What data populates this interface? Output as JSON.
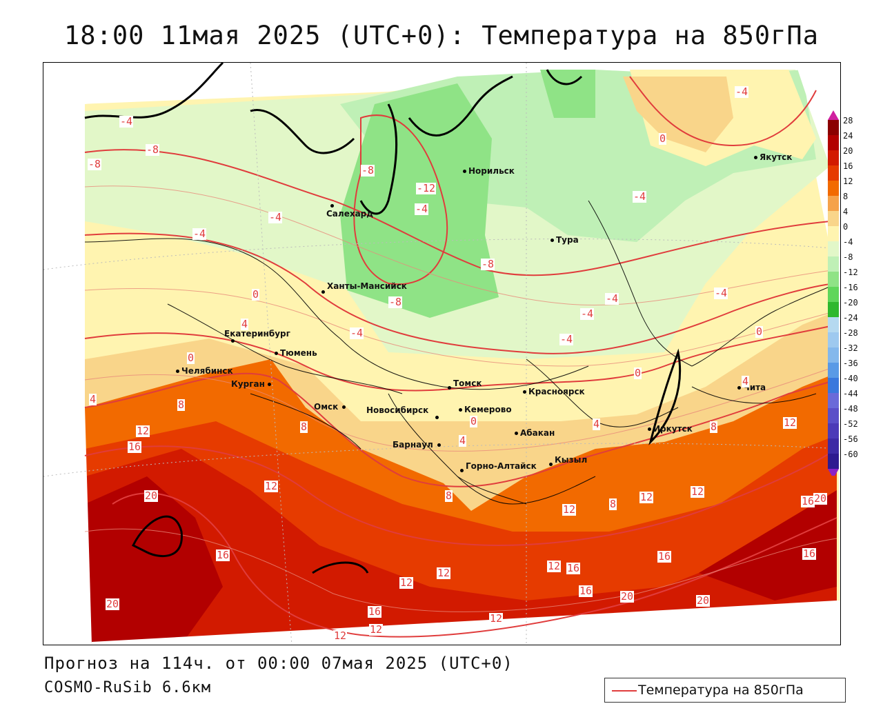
{
  "title": "18:00 11мая 2025 (UTC+0): Температура на 850гПа",
  "footer": {
    "forecast": "Прогноз на 114ч. от 00:00 07мая 2025 (UTC+0)",
    "model": "COSMO-RuSib 6.6км"
  },
  "legend": {
    "label": "Температура на 850гПа",
    "color": "#e03c3c"
  },
  "scale": {
    "ticks": [
      "28",
      "24",
      "20",
      "16",
      "12",
      "8",
      "4",
      "0",
      "-4",
      "-8",
      "-12",
      "-16",
      "-20",
      "-24",
      "-28",
      "-32",
      "-36",
      "-40",
      "-44",
      "-48",
      "-52",
      "-56",
      "-60"
    ],
    "colors": [
      "#8b0000",
      "#b20000",
      "#d21a00",
      "#e63b00",
      "#f26a00",
      "#f5a24a",
      "#f9d58a",
      "#fff4b0",
      "#e2f7c8",
      "#bff0b6",
      "#8fe386",
      "#5fd65a",
      "#2eb82e",
      "#b5d9f0",
      "#9ec9ef",
      "#84b8ec",
      "#5a9ae6",
      "#3a78dd",
      "#6a6ad9",
      "#5a4fc8",
      "#4b3ab8",
      "#3d2aa5",
      "#2e1a90"
    ]
  },
  "cities": [
    {
      "name": "Якутск"
    },
    {
      "name": "Норильск"
    },
    {
      "name": "Салехард"
    },
    {
      "name": "Тура"
    },
    {
      "name": "Ханты-Мансийск"
    },
    {
      "name": "Екатеринбург"
    },
    {
      "name": "Тюмень"
    },
    {
      "name": "Челябинск"
    },
    {
      "name": "Курган"
    },
    {
      "name": "Омск"
    },
    {
      "name": "Новосибирск"
    },
    {
      "name": "Томск"
    },
    {
      "name": "Кемерово"
    },
    {
      "name": "Красноярск"
    },
    {
      "name": "Барнаул"
    },
    {
      "name": "Абакан"
    },
    {
      "name": "Горно-Алтайск"
    },
    {
      "name": "Кызыл"
    },
    {
      "name": "Иркутск"
    },
    {
      "name": "Чита"
    }
  ],
  "contour_labels": [
    "-4",
    "-8",
    "-8",
    "-4",
    "-8",
    "-12",
    "-4",
    "-4",
    "-8",
    "-8",
    "0",
    "-4",
    "4",
    "0",
    "-4",
    "-4",
    "-4",
    "0",
    "0",
    "4",
    "8",
    "8",
    "4",
    "12",
    "16",
    "12",
    "8",
    "0",
    "4",
    "4",
    "8",
    "12",
    "20",
    "12",
    "12",
    "12",
    "8",
    "16",
    "20",
    "16",
    "12",
    "16",
    "16",
    "12",
    "12",
    "20",
    "16",
    "20",
    "16",
    "12",
    "12",
    "16",
    "12",
    "20",
    "-4",
    "0",
    "-4",
    "-4"
  ]
}
